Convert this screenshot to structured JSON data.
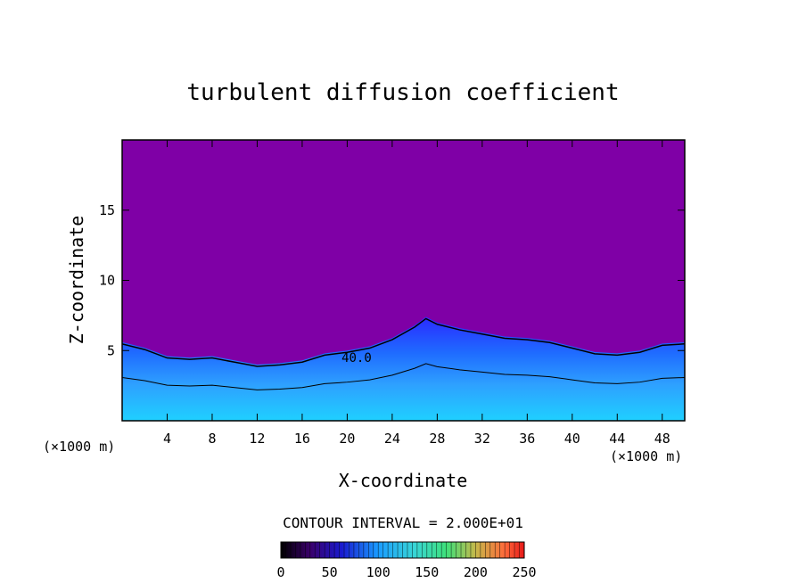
{
  "chart_data": {
    "type": "heatmap",
    "title": "turbulent diffusion coefficient",
    "xlabel": "X-coordinate",
    "ylabel": "Z-coordinate",
    "x_unit_left": "(×1000 m)",
    "x_unit_right": "(×1000 m)",
    "xlim": [
      0,
      50
    ],
    "ylim": [
      0,
      20
    ],
    "x_ticks": [
      "4",
      "8",
      "12",
      "16",
      "20",
      "24",
      "28",
      "32",
      "36",
      "40",
      "44",
      "48"
    ],
    "x_tick_values": [
      4,
      8,
      12,
      16,
      20,
      24,
      28,
      32,
      36,
      40,
      44,
      48
    ],
    "y_ticks": [
      "5",
      "10",
      "15"
    ],
    "y_tick_values": [
      5,
      10,
      15
    ],
    "contour_label": "40.0",
    "contour_label_at": [
      19.5,
      4.2
    ],
    "contour_interval_text": "CONTOUR INTERVAL = 2.000E+01",
    "colorbar": {
      "min": 0,
      "max": 250,
      "ticks": [
        "0",
        "50",
        "100",
        "150",
        "200",
        "250"
      ],
      "tick_values": [
        0,
        50,
        100,
        150,
        200,
        250
      ]
    },
    "background_color": "#7f00a6",
    "turbulent_layer_top": [
      [
        0,
        5.6
      ],
      [
        2,
        5.2
      ],
      [
        4,
        4.6
      ],
      [
        6,
        4.5
      ],
      [
        8,
        4.6
      ],
      [
        10,
        4.3
      ],
      [
        12,
        4.0
      ],
      [
        14,
        4.1
      ],
      [
        16,
        4.3
      ],
      [
        18,
        4.8
      ],
      [
        20,
        5.0
      ],
      [
        22,
        5.3
      ],
      [
        24,
        5.9
      ],
      [
        26,
        6.8
      ],
      [
        27,
        7.4
      ],
      [
        28,
        7.0
      ],
      [
        30,
        6.6
      ],
      [
        32,
        6.3
      ],
      [
        34,
        6.0
      ],
      [
        36,
        5.9
      ],
      [
        38,
        5.7
      ],
      [
        40,
        5.3
      ],
      [
        42,
        4.9
      ],
      [
        44,
        4.8
      ],
      [
        46,
        5.0
      ],
      [
        48,
        5.5
      ],
      [
        50,
        5.6
      ]
    ]
  }
}
